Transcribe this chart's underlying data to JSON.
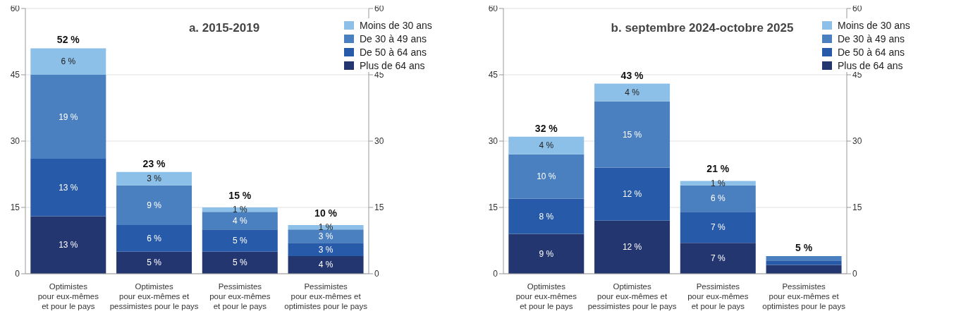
{
  "chart_data": [
    {
      "type": "bar",
      "stacked": true,
      "title": "a. 2015-2019",
      "categories": [
        "Optimistes\npour eux-mêmes\net pour le pays",
        "Optimistes\npour eux-mêmes et\npessimistes pour le pays",
        "Pessimistes\npour eux-mêmes\net pour le pays",
        "Pessimistes\npour eux-mêmes et\noptimistes pour le pays"
      ],
      "series": [
        {
          "name": "Plus de 64 ans",
          "color": "#243670",
          "values": [
            13,
            5,
            5,
            4
          ],
          "value_labels": [
            "13 %",
            "5 %",
            "5 %",
            "4 %"
          ]
        },
        {
          "name": "De 50 à 64 ans",
          "color": "#275aa8",
          "values": [
            13,
            6,
            5,
            3
          ],
          "value_labels": [
            "13 %",
            "6 %",
            "5 %",
            "3 %"
          ]
        },
        {
          "name": "De 30 à 49 ans",
          "color": "#4a80c0",
          "values": [
            19,
            9,
            4,
            3
          ],
          "value_labels": [
            "19 %",
            "9 %",
            "4 %",
            "3 %"
          ]
        },
        {
          "name": "Moins de 30 ans",
          "color": "#8dc0e8",
          "values": [
            6,
            3,
            1,
            1
          ],
          "value_labels": [
            "6 %",
            "3 %",
            "1 %",
            "1 %"
          ]
        }
      ],
      "totals": [
        "52 %",
        "23 %",
        "15 %",
        "10 %"
      ],
      "ylim": [
        0,
        60
      ],
      "yticks": [
        0,
        15,
        30,
        45,
        60
      ],
      "y2lim": [
        0,
        60
      ],
      "y2ticks": [
        0,
        15,
        30,
        45,
        60
      ],
      "grid": "y",
      "legend": "top right"
    },
    {
      "type": "bar",
      "stacked": true,
      "title": "b. septembre 2024-octobre 2025",
      "categories": [
        "Optimistes\npour eux-mêmes\net pour le pays",
        "Optimistes\npour eux-mêmes et\npessimistes pour le pays",
        "Pessimistes\npour eux-mêmes\net pour le pays",
        "Pessimistes\npour eux-mêmes et\noptimistes pour le pays"
      ],
      "series": [
        {
          "name": "Plus de 64 ans",
          "color": "#243670",
          "values": [
            9,
            12,
            7,
            2
          ],
          "value_labels": [
            "9 %",
            "12 %",
            "7 %",
            null
          ]
        },
        {
          "name": "De 50 à 64 ans",
          "color": "#275aa8",
          "values": [
            8,
            12,
            7,
            1
          ],
          "value_labels": [
            "8 %",
            "12 %",
            "7 %",
            null
          ]
        },
        {
          "name": "De 30 à 49 ans",
          "color": "#4a80c0",
          "values": [
            10,
            15,
            6,
            1
          ],
          "value_labels": [
            "10 %",
            "15 %",
            "6 %",
            null
          ]
        },
        {
          "name": "Moins de 30 ans",
          "color": "#8dc0e8",
          "values": [
            4,
            4,
            1,
            0
          ],
          "value_labels": [
            "4 %",
            "4 %",
            "1 %",
            null
          ]
        }
      ],
      "totals": [
        "32 %",
        "43 %",
        "21 %",
        "5 %"
      ],
      "ylim": [
        0,
        60
      ],
      "yticks": [
        0,
        15,
        30,
        45,
        60
      ],
      "y2lim": [
        0,
        60
      ],
      "y2ticks": [
        0,
        15,
        30,
        45,
        60
      ],
      "grid": "y",
      "legend": "top right"
    }
  ]
}
